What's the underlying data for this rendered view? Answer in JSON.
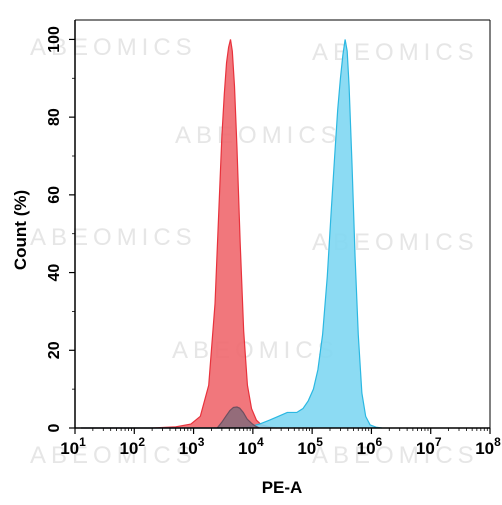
{
  "chart_data": {
    "type": "area",
    "xlabel": "PE-A",
    "ylabel": "Count  (%)",
    "xscale": "log",
    "xlim": [
      10,
      100000000
    ],
    "ylim": [
      0,
      105
    ],
    "x_tick_labels": [
      {
        "base": "10",
        "exp": "1"
      },
      {
        "base": "10",
        "exp": "2"
      },
      {
        "base": "10",
        "exp": "3"
      },
      {
        "base": "10",
        "exp": "4"
      },
      {
        "base": "10",
        "exp": "5"
      },
      {
        "base": "10",
        "exp": "6"
      },
      {
        "base": "10",
        "exp": "7"
      },
      {
        "base": "10",
        "exp": "8"
      }
    ],
    "y_tick_labels": [
      "0",
      "20",
      "40",
      "60",
      "80",
      "100"
    ],
    "watermark_text": "ABEOMICS",
    "series": [
      {
        "color": "#f0686e",
        "stroke": "#e8323c",
        "points": [
          [
            12.6,
            0
          ],
          [
            200,
            0
          ],
          [
            500,
            0.3
          ],
          [
            900,
            1
          ],
          [
            1300,
            3
          ],
          [
            1800,
            11
          ],
          [
            2300,
            32
          ],
          [
            2700,
            58
          ],
          [
            3000,
            75
          ],
          [
            3300,
            86
          ],
          [
            3600,
            94
          ],
          [
            3900,
            98
          ],
          [
            4200,
            100
          ],
          [
            4500,
            97
          ],
          [
            4900,
            88
          ],
          [
            5400,
            72
          ],
          [
            6100,
            48
          ],
          [
            7000,
            25
          ],
          [
            8100,
            11
          ],
          [
            9500,
            5
          ],
          [
            11500,
            2
          ],
          [
            14000,
            0.8
          ],
          [
            19000,
            0.3
          ],
          [
            25000,
            0
          ]
        ]
      },
      {
        "color": "#80d7f2",
        "stroke": "#2bb8e2",
        "points": [
          [
            12.6,
            0
          ],
          [
            3000,
            0
          ],
          [
            8000,
            0.2
          ],
          [
            13000,
            1
          ],
          [
            19000,
            2
          ],
          [
            27000,
            3
          ],
          [
            38000,
            4
          ],
          [
            55000,
            4
          ],
          [
            70000,
            5
          ],
          [
            86000,
            7
          ],
          [
            105000,
            10
          ],
          [
            125000,
            15
          ],
          [
            150000,
            24
          ],
          [
            180000,
            39
          ],
          [
            210000,
            56
          ],
          [
            240000,
            70
          ],
          [
            270000,
            82
          ],
          [
            300000,
            90
          ],
          [
            330000,
            96
          ],
          [
            360000,
            100
          ],
          [
            390000,
            97
          ],
          [
            420000,
            88
          ],
          [
            470000,
            68
          ],
          [
            530000,
            44
          ],
          [
            600000,
            24
          ],
          [
            690000,
            9
          ],
          [
            800000,
            3
          ],
          [
            950000,
            0.8
          ],
          [
            1200000,
            0.2
          ],
          [
            1500000,
            0
          ]
        ]
      },
      {
        "color": "#8a6a7a",
        "stroke": "#6e4f60",
        "points": [
          [
            2500,
            0
          ],
          [
            3000,
            1.5
          ],
          [
            3500,
            3
          ],
          [
            4100,
            4.5
          ],
          [
            4700,
            5.3
          ],
          [
            5400,
            5.4
          ],
          [
            6000,
            5.1
          ],
          [
            6900,
            4
          ],
          [
            8000,
            2.3
          ],
          [
            9500,
            1.2
          ],
          [
            11000,
            0.5
          ],
          [
            13000,
            0
          ]
        ]
      }
    ]
  }
}
